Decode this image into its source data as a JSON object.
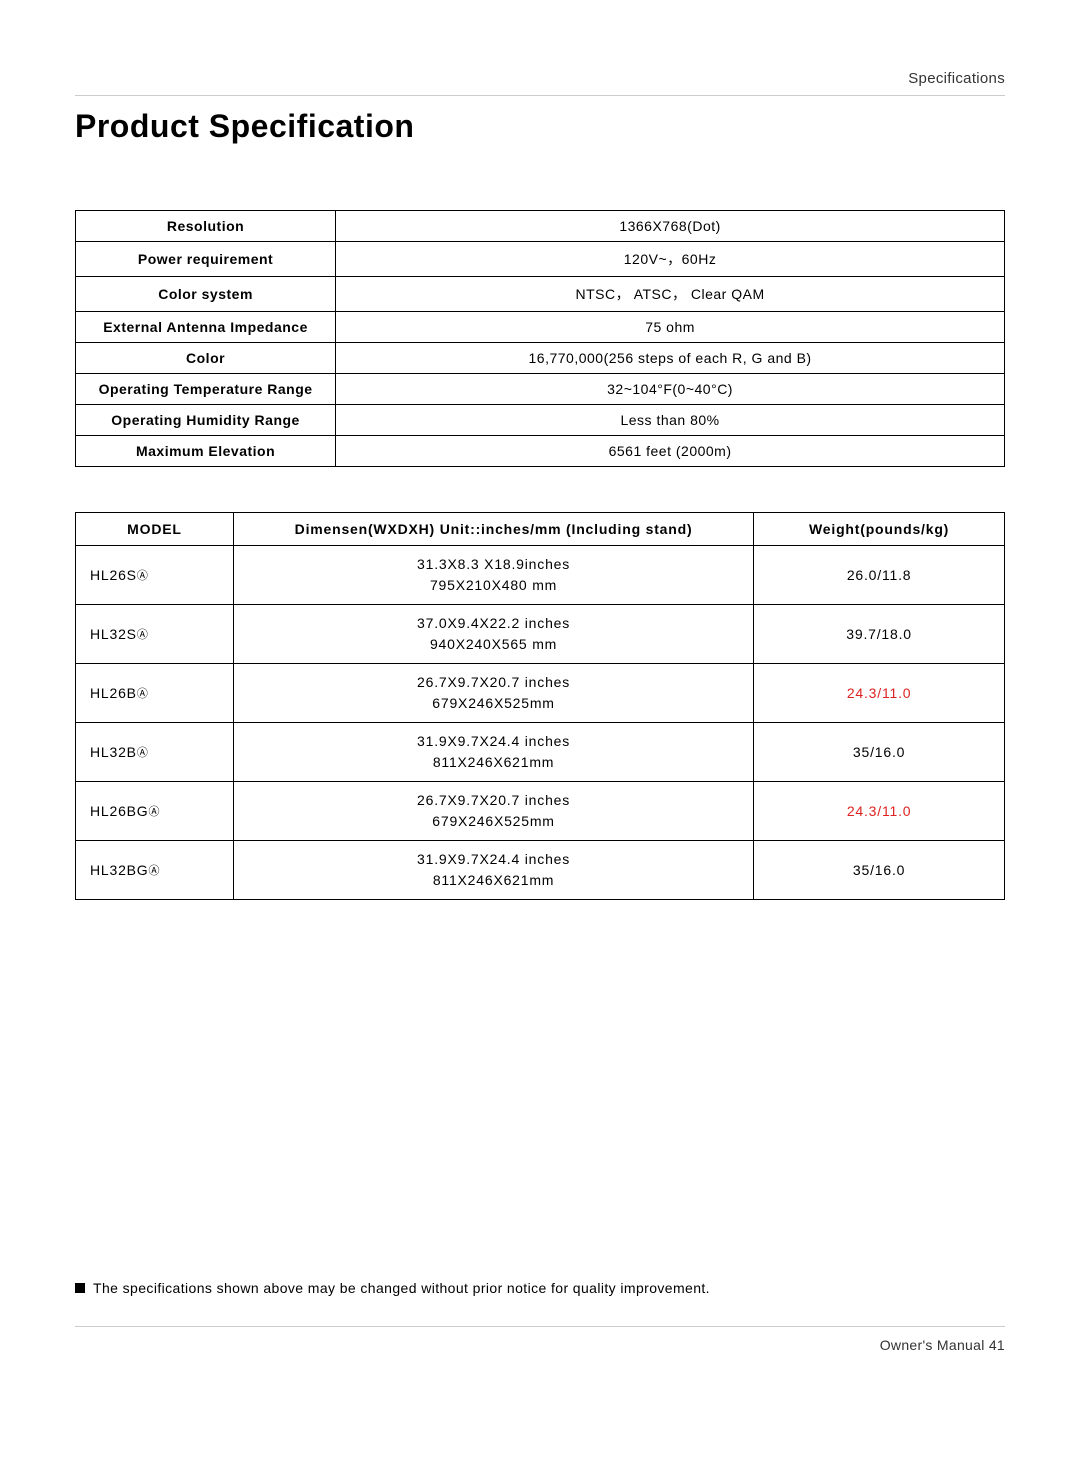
{
  "header": {
    "section": "Specifications"
  },
  "title": "Product Specification",
  "specTable": {
    "rows": [
      {
        "label": "Resolution",
        "value": "1366X768(Dot)"
      },
      {
        "label": "Power requirement",
        "value": "120V~，60Hz"
      },
      {
        "label": "Color system",
        "value": "NTSC，    ATSC，    Clear QAM"
      },
      {
        "label": "External Antenna Impedance",
        "value": "75 ohm"
      },
      {
        "label": "Color",
        "value": "16,770,000(256 steps of each R, G and B)"
      },
      {
        "label": "Operating Temperature Range",
        "value": "32~104°F(0~40°C)"
      },
      {
        "label": "Operating Humidity Range",
        "value": "Less than 80%"
      },
      {
        "label": "Maximum Elevation",
        "value": "6561 feet (2000m)"
      }
    ]
  },
  "modelTable": {
    "headers": {
      "model": "MODEL",
      "dim": "Dimensen(WXDXH) Unit::inches/mm (Including stand)",
      "weight": "Weight(pounds/kg)"
    },
    "rows": [
      {
        "model": "HL26S",
        "suffix": "Ⓐ",
        "dim1": "31.3X8.3 X18.9inches",
        "dim2": "795X210X480 mm",
        "weight": "26.0/11.8",
        "weightRed": false
      },
      {
        "model": "HL32S",
        "suffix": "Ⓐ",
        "dim1": "37.0X9.4X22.2 inches",
        "dim2": "940X240X565 mm",
        "weight": "39.7/18.0",
        "weightRed": false
      },
      {
        "model": "HL26B",
        "suffix": "Ⓐ",
        "dim1": "26.7X9.7X20.7 inches",
        "dim2": "679X246X525mm",
        "weight": "24.3/11.0",
        "weightRed": true
      },
      {
        "model": "HL32B",
        "suffix": "Ⓐ",
        "dim1": "31.9X9.7X24.4 inches",
        "dim2": "811X246X621mm",
        "weight": "35/16.0",
        "weightRed": false
      },
      {
        "model": "HL26BG",
        "suffix": "Ⓐ",
        "dim1": "26.7X9.7X20.7 inches",
        "dim2": "679X246X525mm",
        "weight": "24.3/11.0",
        "weightRed": true
      },
      {
        "model": "HL32BG",
        "suffix": "Ⓐ",
        "dim1": "31.9X9.7X24.4 inches",
        "dim2": "811X246X621mm",
        "weight": "35/16.0",
        "weightRed": false
      }
    ]
  },
  "disclaimer": "The specifications shown above may be changed without prior notice for quality improvement.",
  "footer": {
    "text": "Owner's Manual 41"
  },
  "colors": {
    "text": "#000000",
    "red": "#dd2222",
    "divider": "#cccccc",
    "background": "#ffffff"
  }
}
